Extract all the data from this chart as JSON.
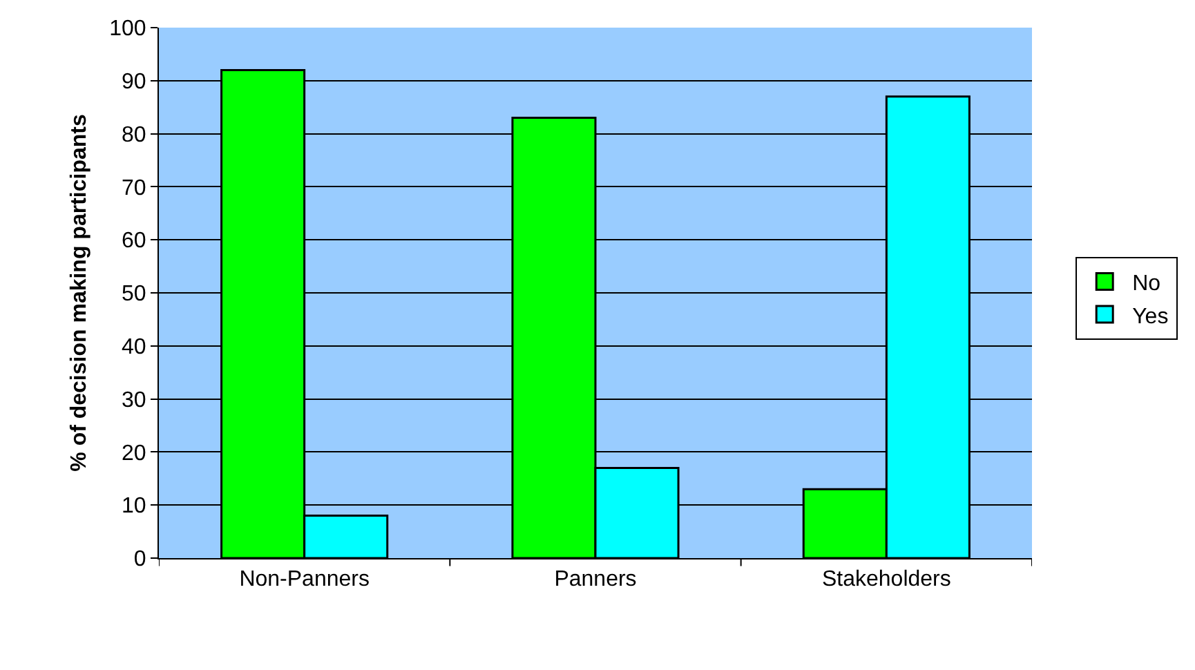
{
  "chart_data": {
    "type": "bar",
    "ylabel": "% of decision making participants",
    "categories": [
      "Non-Panners",
      "Panners",
      "Stakeholders"
    ],
    "series": [
      {
        "name": "No",
        "color": "#00ff00",
        "values": [
          92,
          83,
          13
        ]
      },
      {
        "name": "Yes",
        "color": "#00ffff",
        "values": [
          8,
          17,
          87
        ]
      }
    ],
    "ylim": [
      0,
      100
    ],
    "yticks": [
      0,
      10,
      20,
      30,
      40,
      50,
      60,
      70,
      80,
      90,
      100
    ],
    "grid": "y",
    "legend": "right"
  }
}
